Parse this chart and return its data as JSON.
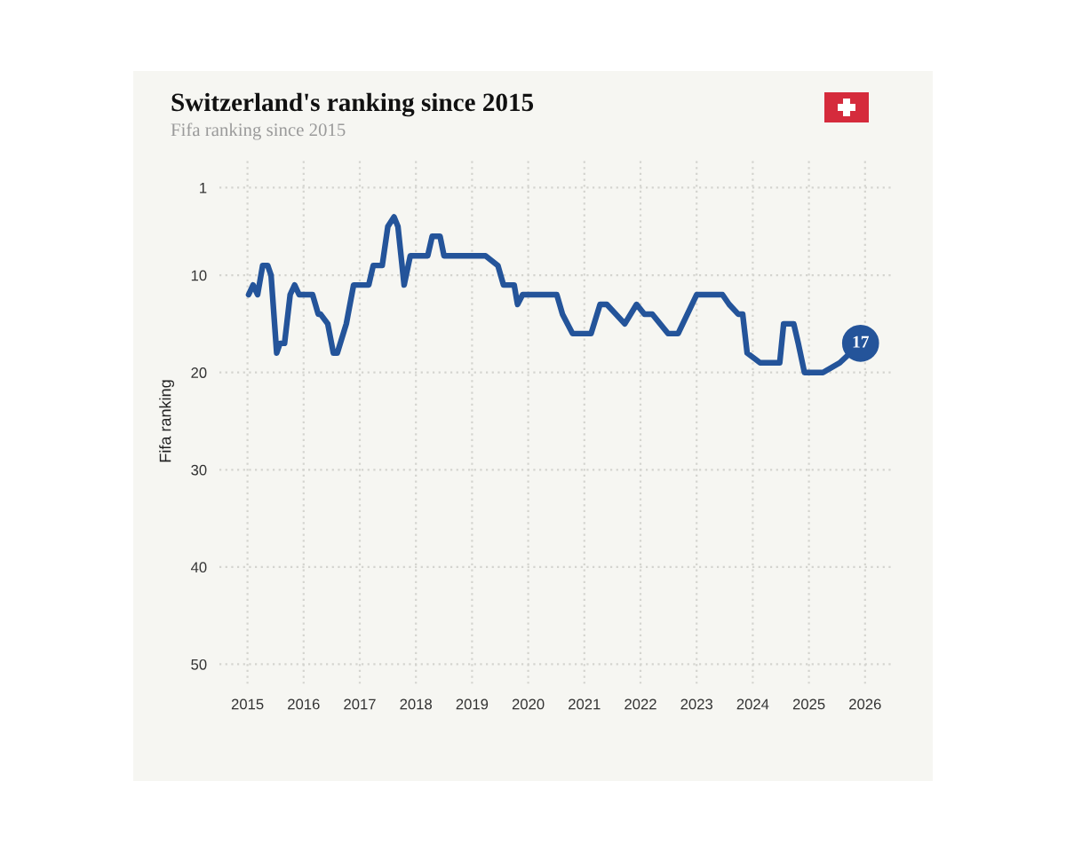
{
  "chart_data": {
    "type": "line",
    "title": "Switzerland's ranking since 2015",
    "subtitle": "Fifa ranking since 2015",
    "ylabel": "Fifa ranking",
    "x": [
      2015.02,
      2015.1,
      2015.18,
      2015.27,
      2015.36,
      2015.42,
      2015.52,
      2015.58,
      2015.66,
      2015.76,
      2015.84,
      2015.92,
      2016.16,
      2016.26,
      2016.3,
      2016.43,
      2016.53,
      2016.6,
      2016.76,
      2016.89,
      2017.16,
      2017.24,
      2017.4,
      2017.5,
      2017.61,
      2017.68,
      2017.79,
      2017.9,
      2018.21,
      2018.29,
      2018.43,
      2018.5,
      2019.24,
      2019.46,
      2019.56,
      2019.75,
      2019.81,
      2019.9,
      2020.51,
      2020.61,
      2020.79,
      2021.12,
      2021.28,
      2021.4,
      2021.56,
      2021.72,
      2021.93,
      2022.07,
      2022.21,
      2022.49,
      2022.67,
      2023.0,
      2023.46,
      2023.58,
      2023.74,
      2023.82,
      2023.9,
      2024.13,
      2024.48,
      2024.55,
      2024.73,
      2024.81,
      2024.92,
      2025.25,
      2025.55,
      2025.92
    ],
    "series": [
      {
        "color": "#24549a",
        "values": [
          12,
          11,
          12,
          9,
          9,
          10,
          18,
          17,
          17,
          12,
          11,
          12,
          12,
          14,
          14,
          15,
          18,
          18,
          15,
          11,
          11,
          9,
          9,
          5,
          4,
          5,
          11,
          8,
          8,
          6,
          6,
          8,
          8,
          9,
          11,
          11,
          13,
          12,
          12,
          14,
          16,
          16,
          13,
          13,
          14,
          15,
          13,
          14,
          14,
          16,
          16,
          12,
          12,
          13,
          14,
          14,
          18,
          19,
          19,
          15,
          15,
          17,
          20,
          20,
          19,
          17
        ]
      }
    ],
    "xlim": [
      2014.5,
      2026.5
    ],
    "xticks": [
      2015,
      2016,
      2017,
      2018,
      2019,
      2020,
      2021,
      2022,
      2023,
      2024,
      2025,
      2026
    ],
    "ylim": [
      52,
      -2
    ],
    "yticks": [
      1,
      10,
      20,
      30,
      40,
      50
    ],
    "grid": true,
    "marker": "none",
    "line_style": "solid",
    "annotations": [
      {
        "text": "17",
        "x": 2025.92,
        "y": 17
      }
    ]
  }
}
